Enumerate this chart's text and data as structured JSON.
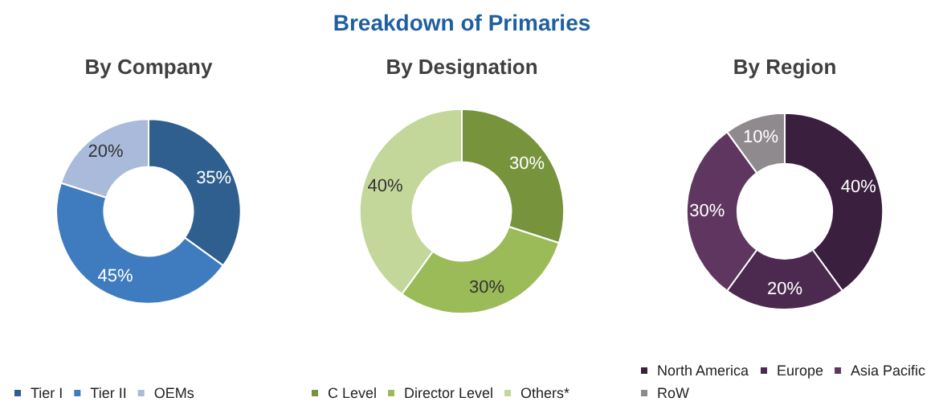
{
  "chart_data": [
    {
      "type": "donut",
      "subtitle": "By Company",
      "categories": [
        "Tier I",
        "Tier II",
        "OEMs"
      ],
      "values": [
        35,
        45,
        20
      ],
      "colors": [
        "#2e5f8f",
        "#3f7cbf",
        "#a9badb"
      ],
      "value_labels": [
        "35%",
        "45%",
        "20%"
      ],
      "legend": "bottom"
    },
    {
      "type": "donut",
      "title": "Breakdown of Primaries",
      "subtitle": "By Designation",
      "categories": [
        "C Level",
        "Director Level",
        "Others*"
      ],
      "values": [
        30,
        30,
        40
      ],
      "colors": [
        "#77933c",
        "#9bbb59",
        "#c4d79b"
      ],
      "value_labels": [
        "30%",
        "30%",
        "40%"
      ],
      "legend": "bottom"
    },
    {
      "type": "donut",
      "subtitle": "By Region",
      "categories": [
        "North America",
        "Europe",
        "Asia Pacific",
        "RoW"
      ],
      "values": [
        40,
        20,
        30,
        10
      ],
      "colors": [
        "#3a1f3e",
        "#4c2a50",
        "#5f3660",
        "#8e8a8e"
      ],
      "value_labels": [
        "40%",
        "20%",
        "30%",
        "10%"
      ],
      "legend": "bottom"
    }
  ]
}
